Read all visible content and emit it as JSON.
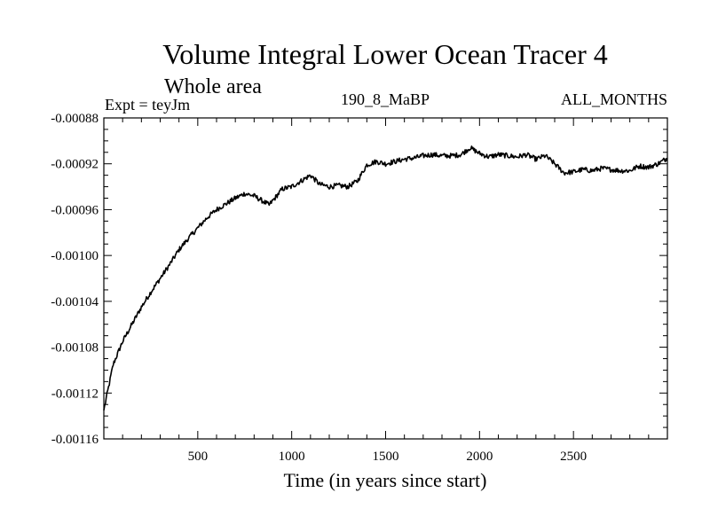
{
  "chart_data": {
    "type": "line",
    "title": "Volume Integral Lower Ocean Tracer 4",
    "subtitle": "Whole area",
    "expt_label": "Expt = teyJm",
    "center_label": "190_8_MaBP",
    "right_label": "ALL_MONTHS",
    "xlabel": "Time (in years since start)",
    "ylabel": "",
    "xlim": [
      0,
      3000
    ],
    "ylim": [
      -0.00116,
      -0.00088
    ],
    "x_ticks": [
      500,
      1000,
      1500,
      2000,
      2500
    ],
    "x_tick_labels": [
      "500",
      "1000",
      "1500",
      "2000",
      "2500"
    ],
    "y_ticks": [
      -0.00116,
      -0.00112,
      -0.00108,
      -0.00104,
      -0.001,
      -0.00096,
      -0.00092,
      -0.00088
    ],
    "y_tick_labels": [
      "-0.00116",
      "-0.00112",
      "-0.00108",
      "-0.00104",
      "-0.00100",
      "-0.00096",
      "-0.00092",
      "-0.00088"
    ],
    "line_color": "#000000",
    "series": [
      {
        "name": "Volume Integral Lower Ocean Tracer 4",
        "x": [
          0,
          25,
          50,
          100,
          150,
          200,
          250,
          300,
          350,
          400,
          450,
          500,
          550,
          600,
          650,
          700,
          750,
          800,
          850,
          880,
          950,
          1000,
          1050,
          1100,
          1150,
          1200,
          1250,
          1300,
          1350,
          1400,
          1450,
          1500,
          1550,
          1600,
          1650,
          1700,
          1750,
          1800,
          1850,
          1900,
          1950,
          2000,
          2050,
          2100,
          2150,
          2200,
          2250,
          2300,
          2350,
          2400,
          2450,
          2500,
          2550,
          2600,
          2650,
          2700,
          2750,
          2800,
          2850,
          2900,
          2950,
          3000
        ],
        "values": [
          -0.001135,
          -0.001115,
          -0.001095,
          -0.001075,
          -0.00106,
          -0.001045,
          -0.001032,
          -0.00102,
          -0.001008,
          -0.000995,
          -0.000985,
          -0.000976,
          -0.000967,
          -0.00096,
          -0.000955,
          -0.00095,
          -0.000946,
          -0.000948,
          -0.000953,
          -0.000956,
          -0.000942,
          -0.00094,
          -0.000935,
          -0.00093,
          -0.000938,
          -0.00094,
          -0.000939,
          -0.00094,
          -0.000935,
          -0.000921,
          -0.000918,
          -0.00092,
          -0.000918,
          -0.000916,
          -0.000915,
          -0.000913,
          -0.000912,
          -0.000913,
          -0.000913,
          -0.000912,
          -0.000906,
          -0.000911,
          -0.000914,
          -0.000912,
          -0.000913,
          -0.000914,
          -0.000912,
          -0.000916,
          -0.000913,
          -0.00092,
          -0.000928,
          -0.000927,
          -0.000925,
          -0.000926,
          -0.000924,
          -0.000925,
          -0.000926,
          -0.000926,
          -0.000922,
          -0.000923,
          -0.00092,
          -0.000915
        ]
      }
    ]
  }
}
